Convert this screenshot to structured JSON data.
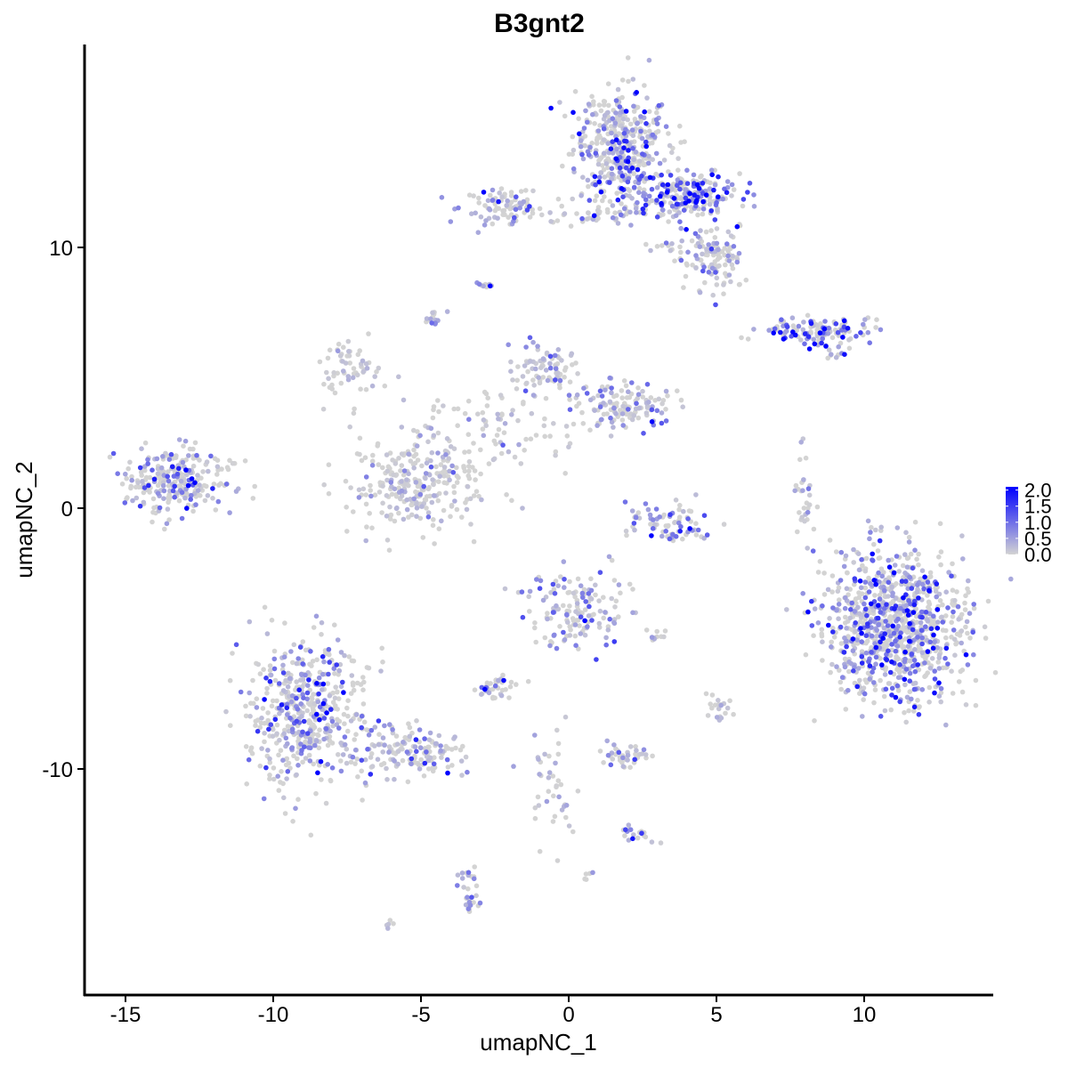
{
  "chart_data": {
    "type": "scatter",
    "title": "B3gnt2",
    "xlabel": "umapNC_1",
    "ylabel": "umapNC_2",
    "xlim": [
      -16.5,
      14.5
    ],
    "ylim": [
      -18.5,
      17.9
    ],
    "xticks": [
      -15,
      -10,
      -5,
      0,
      5,
      10
    ],
    "xtick_labels": [
      "-15",
      "-10",
      "-5",
      "0",
      "5",
      "10"
    ],
    "yticks": [
      -10,
      0,
      10
    ],
    "ytick_labels": [
      "-10",
      "0",
      "10"
    ],
    "grid": false,
    "legend": {
      "placement": "right",
      "type": "colorbar",
      "range": [
        0,
        2.1
      ],
      "ticks": [
        0.0,
        0.5,
        1.0,
        1.5,
        2.0
      ],
      "tick_labels": [
        "0.0",
        "0.5",
        "1.0",
        "1.5",
        "2.0"
      ],
      "low_color": "#D3D3D3",
      "high_color": "#0000FF"
    },
    "clusters": [
      {
        "center": [
          1.8,
          13.8
        ],
        "spread": [
          0.8,
          1.1
        ],
        "n": 420,
        "mean_expression": 0.6
      },
      {
        "center": [
          4.0,
          12.0
        ],
        "spread": [
          1.0,
          0.45
        ],
        "n": 220,
        "mean_expression": 1.0
      },
      {
        "center": [
          4.8,
          9.6
        ],
        "spread": [
          0.6,
          0.6
        ],
        "n": 120,
        "mean_expression": 0.4
      },
      {
        "center": [
          -2.3,
          11.6
        ],
        "spread": [
          0.6,
          0.35
        ],
        "n": 90,
        "mean_expression": 0.5
      },
      {
        "center": [
          1.0,
          11.3
        ],
        "spread": [
          0.8,
          0.25
        ],
        "n": 40,
        "mean_expression": 0.4
      },
      {
        "center": [
          8.5,
          6.8
        ],
        "spread": [
          1.0,
          0.22
        ],
        "n": 130,
        "mean_expression": 0.9
      },
      {
        "center": [
          -13.2,
          1.0
        ],
        "spread": [
          0.9,
          0.6
        ],
        "n": 260,
        "mean_expression": 0.5
      },
      {
        "center": [
          -7.3,
          5.5
        ],
        "spread": [
          0.6,
          0.5
        ],
        "n": 60,
        "mean_expression": 0.2
      },
      {
        "center": [
          -5.2,
          0.9
        ],
        "spread": [
          1.1,
          0.9
        ],
        "n": 260,
        "mean_expression": 0.2
      },
      {
        "center": [
          -0.8,
          5.3
        ],
        "spread": [
          0.6,
          0.5
        ],
        "n": 80,
        "mean_expression": 0.3
      },
      {
        "center": [
          1.8,
          4.0
        ],
        "spread": [
          0.8,
          0.45
        ],
        "n": 130,
        "mean_expression": 0.5
      },
      {
        "center": [
          -3.0,
          3.0
        ],
        "spread": [
          1.8,
          0.9
        ],
        "n": 110,
        "mean_expression": 0.2
      },
      {
        "center": [
          3.4,
          -0.6
        ],
        "spread": [
          0.8,
          0.4
        ],
        "n": 80,
        "mean_expression": 0.6
      },
      {
        "center": [
          11.0,
          -4.4
        ],
        "spread": [
          1.2,
          1.4
        ],
        "n": 950,
        "mean_expression": 0.8
      },
      {
        "center": [
          -8.8,
          -7.8
        ],
        "spread": [
          1.0,
          1.4
        ],
        "n": 500,
        "mean_expression": 0.5
      },
      {
        "center": [
          -5.5,
          -9.4
        ],
        "spread": [
          1.1,
          0.5
        ],
        "n": 150,
        "mean_expression": 0.4
      },
      {
        "center": [
          0.2,
          -3.8
        ],
        "spread": [
          0.8,
          0.8
        ],
        "n": 150,
        "mean_expression": 0.6
      },
      {
        "center": [
          -2.5,
          -6.9
        ],
        "spread": [
          0.3,
          0.2
        ],
        "n": 40,
        "mean_expression": 0.9
      },
      {
        "center": [
          1.8,
          -9.5
        ],
        "spread": [
          0.5,
          0.3
        ],
        "n": 40,
        "mean_expression": 0.3
      },
      {
        "center": [
          -3.4,
          -14.5
        ],
        "spread": [
          0.25,
          0.6
        ],
        "n": 30,
        "mean_expression": 0.4
      },
      {
        "center": [
          -0.5,
          -10.8
        ],
        "spread": [
          0.35,
          1.0
        ],
        "n": 40,
        "mean_expression": 0.3
      },
      {
        "center": [
          2.3,
          -12.5
        ],
        "spread": [
          0.4,
          0.15
        ],
        "n": 20,
        "mean_expression": 0.5
      },
      {
        "center": [
          8.0,
          0.3
        ],
        "spread": [
          0.2,
          0.9
        ],
        "n": 30,
        "mean_expression": 0.4
      },
      {
        "center": [
          -4.6,
          7.3
        ],
        "spread": [
          0.15,
          0.2
        ],
        "n": 15,
        "mean_expression": 0.6
      },
      {
        "center": [
          -2.8,
          8.6
        ],
        "spread": [
          0.15,
          0.1
        ],
        "n": 10,
        "mean_expression": 0.5
      },
      {
        "center": [
          3.2,
          10.0
        ],
        "spread": [
          0.3,
          0.15
        ],
        "n": 10,
        "mean_expression": 0.5
      },
      {
        "center": [
          9.0,
          6.0
        ],
        "spread": [
          0.3,
          0.15
        ],
        "n": 10,
        "mean_expression": 0.6
      },
      {
        "center": [
          5.0,
          -7.5
        ],
        "spread": [
          0.2,
          0.3
        ],
        "n": 20,
        "mean_expression": 0.3
      },
      {
        "center": [
          3.0,
          -4.9
        ],
        "spread": [
          0.2,
          0.1
        ],
        "n": 10,
        "mean_expression": 0.5
      },
      {
        "center": [
          -6.0,
          -16.0
        ],
        "spread": [
          0.1,
          0.1
        ],
        "n": 5,
        "mean_expression": 0.5
      },
      {
        "center": [
          0.6,
          -14.0
        ],
        "spread": [
          0.1,
          0.1
        ],
        "n": 5,
        "mean_expression": 0.8
      }
    ]
  }
}
